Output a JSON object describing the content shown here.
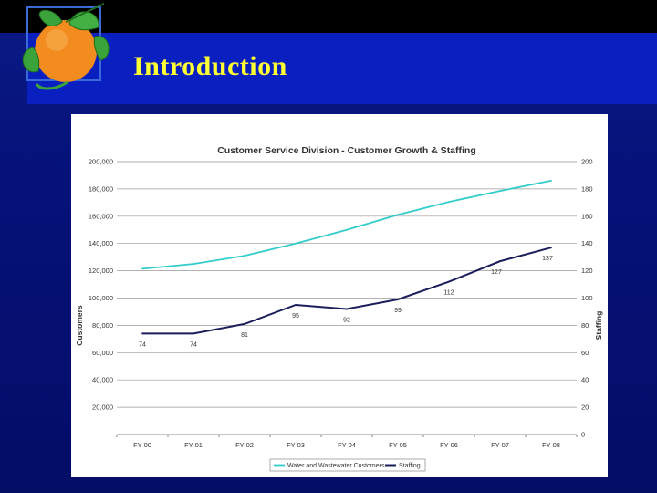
{
  "slide": {
    "title": "Introduction"
  },
  "logo": {
    "icon": "orange-fruit-with-leaves-icon",
    "colors": {
      "fruit": "#f28c1e",
      "leaf": "#3aa33a"
    }
  },
  "colors": {
    "background": "#06127a",
    "title_bar": "#0a1fc0",
    "title_text": "#ffff33",
    "customers_series": "#33cccc",
    "staffing_series": "#1a1f5c"
  },
  "chart_data": {
    "type": "line",
    "title": "Customer Service Division - Customer Growth & Staffing",
    "xlabel": "",
    "ylabel": "Customers",
    "y2label": "Staffing",
    "categories": [
      "FY 00",
      "FY 01",
      "FY 02",
      "FY 03",
      "FY 04",
      "FY 05",
      "FY 06",
      "FY 07",
      "FY 08"
    ],
    "ylim": [
      0,
      200000
    ],
    "y2lim": [
      0,
      200
    ],
    "yticks": [
      "-",
      "20,000",
      "40,000",
      "60,000",
      "80,000",
      "100,000",
      "120,000",
      "140,000",
      "160,000",
      "180,000",
      "200,000"
    ],
    "y2ticks": [
      "0",
      "20",
      "40",
      "60",
      "80",
      "100",
      "120",
      "140",
      "160",
      "180",
      "200"
    ],
    "grid": "horizontal",
    "legend_position": "bottom",
    "series": [
      {
        "name": "Water and Wastewater Customers",
        "axis": "left",
        "values": [
          121500,
          125000,
          131000,
          140000,
          150000,
          161000,
          170500,
          178500,
          186000
        ]
      },
      {
        "name": "Staffing",
        "axis": "right",
        "values": [
          74,
          74,
          81,
          95,
          92,
          99,
          112,
          127,
          137
        ],
        "labels": [
          "74",
          "74",
          "81",
          "95",
          "92",
          "99",
          "112",
          "127",
          "137"
        ]
      }
    ]
  }
}
